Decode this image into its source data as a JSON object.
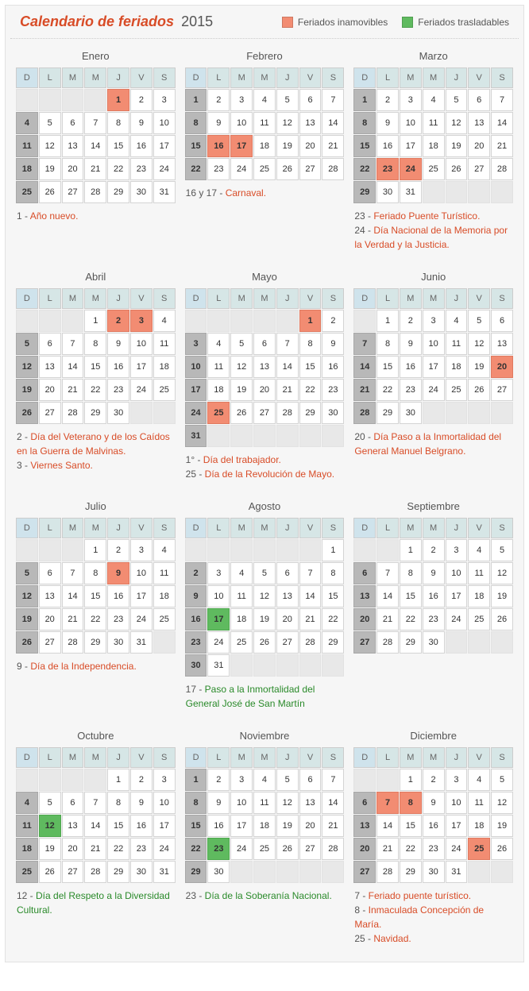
{
  "header": {
    "title_emph": "Calendario de feriados",
    "title_year": "2015",
    "legend": {
      "immovable": {
        "label": "Feriados inamovibles",
        "color": "#f28c72"
      },
      "movable": {
        "label": "Feriados trasladables",
        "color": "#5fba5f"
      }
    }
  },
  "colors": {
    "background": "#f6f6f6",
    "header_text": "#555555",
    "emph": "#d84c27",
    "movable_text": "#2a8a2a",
    "th_bg": "#d6e6e6",
    "th_sunday_bg": "#cfe3ec",
    "sunday_bg": "#b8b8b8",
    "immovable_bg": "#f28c72",
    "movable_bg": "#5fba5f",
    "pad_bg": "#e8e8e8"
  },
  "dow": [
    "D",
    "L",
    "M",
    "M",
    "J",
    "V",
    "S"
  ],
  "months": [
    {
      "name": "Enero",
      "start": 4,
      "days": 31,
      "holidays": {
        "immovable": [
          1
        ],
        "movable": []
      },
      "notes": [
        {
          "n": "1",
          "t": "Año nuevo.",
          "k": "imv"
        }
      ]
    },
    {
      "name": "Febrero",
      "start": 0,
      "days": 28,
      "holidays": {
        "immovable": [
          16,
          17
        ],
        "movable": []
      },
      "notes": [
        {
          "n": "16 y 17",
          "t": "Carnaval.",
          "k": "imv"
        }
      ]
    },
    {
      "name": "Marzo",
      "start": 0,
      "days": 31,
      "holidays": {
        "immovable": [
          23,
          24
        ],
        "movable": []
      },
      "notes": [
        {
          "n": "23",
          "t": "Feriado Puente Turístico.",
          "k": "imv"
        },
        {
          "n": "24",
          "t": "Día Nacional de la Memoria por la Verdad y la Justicia.",
          "k": "imv"
        }
      ]
    },
    {
      "name": "Abril",
      "start": 3,
      "days": 30,
      "holidays": {
        "immovable": [
          2,
          3
        ],
        "movable": []
      },
      "notes": [
        {
          "n": "2",
          "t": "Día del Veterano y de los Caídos en la Guerra de Malvinas.",
          "k": "imv"
        },
        {
          "n": "3",
          "t": "Viernes Santo.",
          "k": "imv"
        }
      ]
    },
    {
      "name": "Mayo",
      "start": 5,
      "days": 31,
      "holidays": {
        "immovable": [
          1,
          25
        ],
        "movable": []
      },
      "notes": [
        {
          "n": "1°",
          "t": "Día del trabajador.",
          "k": "imv"
        },
        {
          "n": "25",
          "t": "Día de la Revolución de Mayo.",
          "k": "imv"
        }
      ]
    },
    {
      "name": "Junio",
      "start": 1,
      "days": 30,
      "holidays": {
        "immovable": [
          20
        ],
        "movable": []
      },
      "notes": [
        {
          "n": "20",
          "t": "Día Paso a la Inmortalidad del General Manuel Belgrano.",
          "k": "imv"
        }
      ]
    },
    {
      "name": "Julio",
      "start": 3,
      "days": 31,
      "holidays": {
        "immovable": [
          9
        ],
        "movable": []
      },
      "notes": [
        {
          "n": "9",
          "t": "Día de la Independencia.",
          "k": "imv"
        }
      ]
    },
    {
      "name": "Agosto",
      "start": 6,
      "days": 31,
      "holidays": {
        "immovable": [],
        "movable": [
          17
        ]
      },
      "notes": [
        {
          "n": "17",
          "t": "Paso a la Inmortalidad del General José de San Martín",
          "k": "tra"
        }
      ]
    },
    {
      "name": "Septiembre",
      "start": 2,
      "days": 30,
      "holidays": {
        "immovable": [],
        "movable": []
      },
      "notes": []
    },
    {
      "name": "Octubre",
      "start": 4,
      "days": 31,
      "holidays": {
        "immovable": [],
        "movable": [
          12
        ]
      },
      "notes": [
        {
          "n": "12",
          "t": "Día del Respeto a la Diversidad Cultural.",
          "k": "tra"
        }
      ]
    },
    {
      "name": "Noviembre",
      "start": 0,
      "days": 30,
      "holidays": {
        "immovable": [],
        "movable": [
          23
        ]
      },
      "notes": [
        {
          "n": "23",
          "t": "Día de la Soberanía Nacional.",
          "k": "tra"
        }
      ]
    },
    {
      "name": "Diciembre",
      "start": 2,
      "days": 31,
      "holidays": {
        "immovable": [
          7,
          8,
          25
        ],
        "movable": []
      },
      "notes": [
        {
          "n": "7",
          "t": "Feriado puente turístico.",
          "k": "imv"
        },
        {
          "n": "8",
          "t": "Inmaculada Concepción de María.",
          "k": "imv"
        },
        {
          "n": "25",
          "t": "Navidad.",
          "k": "imv"
        }
      ]
    }
  ]
}
